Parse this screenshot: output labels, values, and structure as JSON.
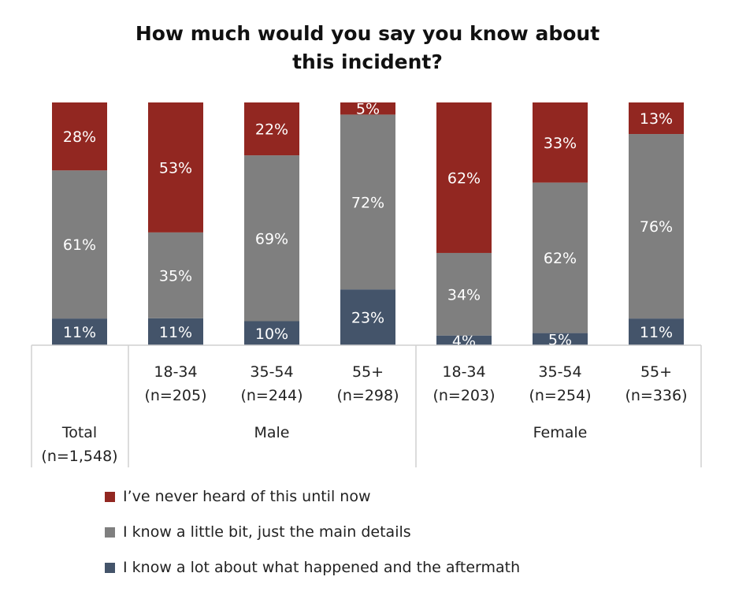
{
  "chart_data": {
    "type": "bar",
    "stacked": true,
    "title": [
      "How much would you say you know about",
      "this incident?"
    ],
    "categories": [
      {
        "label": "Total",
        "n": "(n=1,548)"
      },
      {
        "label": "18-34",
        "n": "(n=205)"
      },
      {
        "label": "35-54",
        "n": "(n=244)"
      },
      {
        "label": "55+",
        "n": "(n=298)"
      },
      {
        "label": "18-34",
        "n": "(n=203)"
      },
      {
        "label": "35-54",
        "n": "(n=254)"
      },
      {
        "label": "55+",
        "n": "(n=336)"
      }
    ],
    "groups": [
      {
        "label": "Male",
        "from": 1,
        "to": 3
      },
      {
        "label": "Female",
        "from": 4,
        "to": 6
      }
    ],
    "series": [
      {
        "name": "I know a lot about what happened and the aftermath",
        "color": "#44546A",
        "values": [
          11,
          11,
          10,
          23,
          4,
          5,
          11
        ]
      },
      {
        "name": "I know a little bit, just the main details",
        "color": "#7F7F7F",
        "values": [
          61,
          35,
          69,
          72,
          34,
          62,
          76
        ]
      },
      {
        "name": "I’ve never heard of this until now",
        "color": "#922721",
        "values": [
          28,
          53,
          22,
          5,
          62,
          33,
          13
        ]
      }
    ],
    "legend_order": [
      2,
      1,
      0
    ],
    "value_suffix": "%",
    "ylim": [
      0,
      100
    ],
    "legend_position": "bottom-left"
  }
}
